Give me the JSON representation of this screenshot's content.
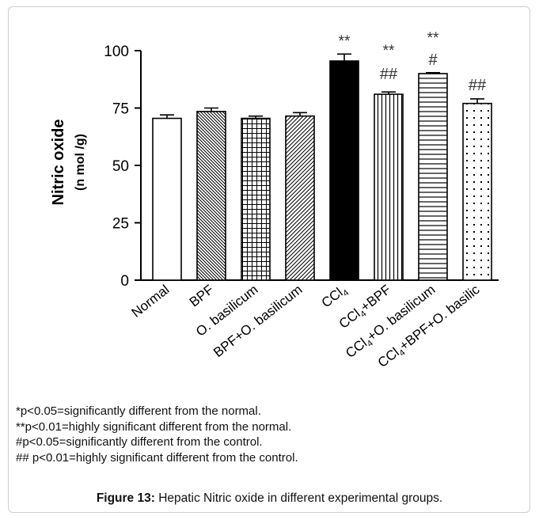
{
  "chart_data": {
    "type": "bar",
    "ylabel": "Nitric oxide",
    "ylabel_unit": "(n mol /g)",
    "ylim": [
      0,
      100
    ],
    "yticks": [
      0,
      25,
      50,
      75,
      100
    ],
    "categories": [
      {
        "base": "Normal",
        "sub": "",
        "rest": ""
      },
      {
        "base": "BPF",
        "sub": "",
        "rest": ""
      },
      {
        "base": "O. basilicum",
        "sub": "",
        "rest": ""
      },
      {
        "base": "BPF+O. basilicum",
        "sub": "",
        "rest": ""
      },
      {
        "base": "CCl",
        "sub": "4",
        "rest": ""
      },
      {
        "base": "CCl",
        "sub": "4",
        "rest": "+BPF"
      },
      {
        "base": "CCl",
        "sub": "4",
        "rest": "+O. basilicum"
      },
      {
        "base": "CCl",
        "sub": "4",
        "rest": "+BPF+O. basilic"
      }
    ],
    "values": [
      70.5,
      73.5,
      70.5,
      71.5,
      95.5,
      81,
      90,
      77
    ],
    "errors": [
      1.5,
      1.5,
      1,
      1.5,
      3,
      1,
      0.4,
      2
    ],
    "patterns": [
      "none",
      "back-diag-fine",
      "grid",
      "forward-diag",
      "solid",
      "vertical",
      "horizontal",
      "dots"
    ],
    "annotations": [
      {
        "bar": 4,
        "lines": [
          "**"
        ]
      },
      {
        "bar": 5,
        "lines": [
          "**",
          "##"
        ]
      },
      {
        "bar": 6,
        "lines": [
          "**",
          "#"
        ]
      },
      {
        "bar": 7,
        "lines": [
          "##"
        ]
      }
    ],
    "grid": false,
    "legend": "none"
  },
  "notes": [
    "*p<0.05=significantly different from the normal.",
    "**p<0.01=highly significant different from the normal.",
    "#p<0.05=significantly different from the control.",
    "## p<0.01=highly significant different from the control."
  ],
  "caption": {
    "label": "Figure 13:",
    "text": " Hepatic Nitric oxide in different experimental groups."
  }
}
